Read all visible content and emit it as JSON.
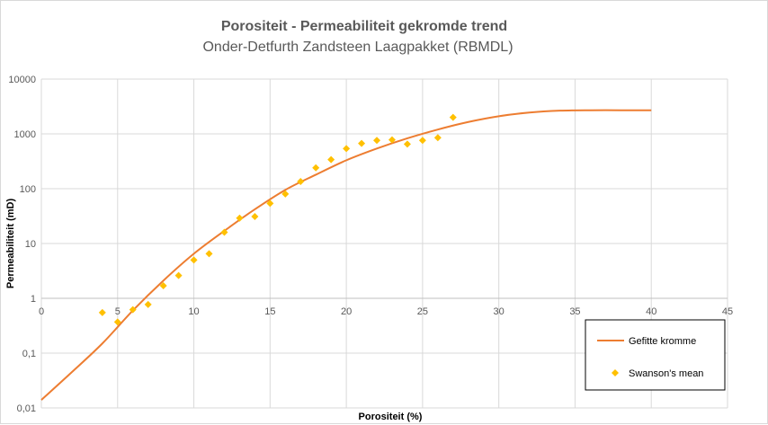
{
  "chart_data": {
    "type": "scatter",
    "title": "Porositeit - Permeabiliteit gekromde trend",
    "subtitle": "Onder-Detfurth Zandsteen Laagpakket (RBMDL)",
    "xlabel": "Porositeit (%)",
    "ylabel": "Permeabiliteit (mD)",
    "xlim": [
      0,
      45
    ],
    "ylim": [
      0.01,
      10000
    ],
    "yscale": "log",
    "x_ticks": [
      "0",
      "5",
      "10",
      "15",
      "20",
      "25",
      "30",
      "35",
      "40",
      "45"
    ],
    "y_ticks": [
      "0,01",
      "0,1",
      "1",
      "10",
      "100",
      "1000",
      "10000"
    ],
    "grid": "vertical",
    "legend_position": "bottom-right",
    "series": [
      {
        "name": "Gefitte kromme",
        "kind": "line",
        "color": "#ed7d31",
        "x": [
          0,
          2,
          4,
          6,
          8,
          10,
          12,
          14,
          16,
          18,
          20,
          22,
          24,
          26,
          28,
          30,
          32,
          34,
          36,
          38,
          40
        ],
        "y": [
          0.014,
          0.045,
          0.15,
          0.6,
          2.1,
          6.5,
          17,
          42,
          95,
          180,
          330,
          540,
          830,
          1200,
          1650,
          2100,
          2450,
          2650,
          2700,
          2700,
          2700
        ]
      },
      {
        "name": "Swanson's mean",
        "kind": "scatter",
        "color": "#ffc000",
        "x": [
          4,
          5,
          6,
          7,
          8,
          9,
          10,
          11,
          12,
          13,
          14,
          15,
          16,
          17,
          18,
          19,
          20,
          21,
          22,
          23,
          24,
          25,
          26,
          27
        ],
        "y": [
          0.55,
          0.37,
          0.62,
          0.77,
          1.7,
          2.6,
          5,
          6.5,
          16,
          29,
          31,
          54,
          80,
          135,
          240,
          340,
          540,
          670,
          760,
          780,
          650,
          760,
          850,
          2000
        ]
      }
    ]
  }
}
